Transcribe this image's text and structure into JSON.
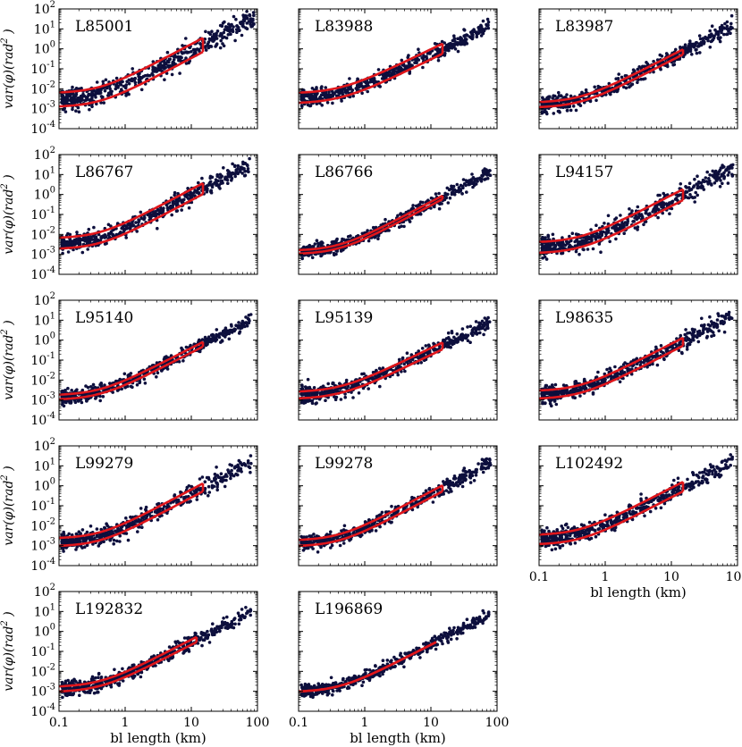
{
  "colors": {
    "points": "#0d0f3d",
    "fit": "#e0161b",
    "frame": "#000000"
  },
  "chart_data": {
    "type": "scatter",
    "title": "",
    "xlabel": "bl length (km)",
    "ylabel_parts": {
      "prefix": "var(",
      "phi": "φ",
      "mid": ")(",
      "rad": "rad",
      "sup": "2",
      "suffix": " )"
    },
    "xscale": "log",
    "yscale": "log",
    "xlim": [
      0.1,
      100
    ],
    "ylim": [
      0.0001,
      100
    ],
    "xticks": [
      0.1,
      1,
      10,
      100
    ],
    "xtick_labels": [
      "0.1",
      "1",
      "10",
      "100"
    ],
    "yticks": [
      0.0001,
      0.001,
      0.01,
      0.1,
      1,
      10,
      100
    ],
    "ytick_labels": [
      {
        "base": "10",
        "exp": "-4"
      },
      {
        "base": "10",
        "exp": "-3"
      },
      {
        "base": "10",
        "exp": "-2"
      },
      {
        "base": "10",
        "exp": "-1"
      },
      {
        "base": "10",
        "exp": "0"
      },
      {
        "base": "10",
        "exp": "1"
      },
      {
        "base": "10",
        "exp": "2"
      }
    ],
    "panels": [
      {
        "label": "L85001",
        "floor": 0.0012,
        "slope": 1.75,
        "ratio": 5.0,
        "spread": 0.28,
        "xmax": 15,
        "datamax": 90
      },
      {
        "label": "L83988",
        "floor": 0.0018,
        "slope": 1.6,
        "ratio": 3.2,
        "spread": 0.2,
        "xmax": 15,
        "datamax": 75
      },
      {
        "label": "L83987",
        "floor": 0.0011,
        "slope": 1.7,
        "ratio": 1.8,
        "spread": 0.2,
        "xmax": 15,
        "datamax": 85
      },
      {
        "label": "L86767",
        "floor": 0.0018,
        "slope": 1.75,
        "ratio": 3.5,
        "spread": 0.22,
        "xmax": 15,
        "datamax": 80
      },
      {
        "label": "L86766",
        "floor": 0.001,
        "slope": 1.75,
        "ratio": 1.5,
        "spread": 0.17,
        "xmax": 15,
        "datamax": 80
      },
      {
        "label": "L94157",
        "floor": 0.0011,
        "slope": 1.7,
        "ratio": 3.5,
        "spread": 0.25,
        "xmax": 15,
        "datamax": 85
      },
      {
        "label": "L95140",
        "floor": 0.001,
        "slope": 1.7,
        "ratio": 1.7,
        "spread": 0.18,
        "xmax": 15,
        "datamax": 80
      },
      {
        "label": "L95139",
        "floor": 0.0011,
        "slope": 1.6,
        "ratio": 2.2,
        "spread": 0.2,
        "xmax": 15,
        "datamax": 80
      },
      {
        "label": "L98635",
        "floor": 0.0011,
        "slope": 1.7,
        "ratio": 2.5,
        "spread": 0.22,
        "xmax": 15,
        "datamax": 85
      },
      {
        "label": "L99279",
        "floor": 0.0009,
        "slope": 1.75,
        "ratio": 2.5,
        "spread": 0.2,
        "xmax": 15,
        "datamax": 80
      },
      {
        "label": "L99278",
        "floor": 0.0009,
        "slope": 1.75,
        "ratio": 2.0,
        "spread": 0.18,
        "xmax": 15,
        "datamax": 80
      },
      {
        "label": "L102492",
        "floor": 0.0011,
        "slope": 1.7,
        "ratio": 3.0,
        "spread": 0.22,
        "xmax": 15,
        "datamax": 85
      },
      {
        "label": "L192832",
        "floor": 0.0009,
        "slope": 1.7,
        "ratio": 1.8,
        "spread": 0.18,
        "xmax": 12,
        "datamax": 80
      },
      {
        "label": "L196869",
        "floor": 0.0009,
        "slope": 1.7,
        "ratio": 1.0,
        "spread": 0.15,
        "xmax": 12,
        "datamax": 80
      }
    ]
  }
}
